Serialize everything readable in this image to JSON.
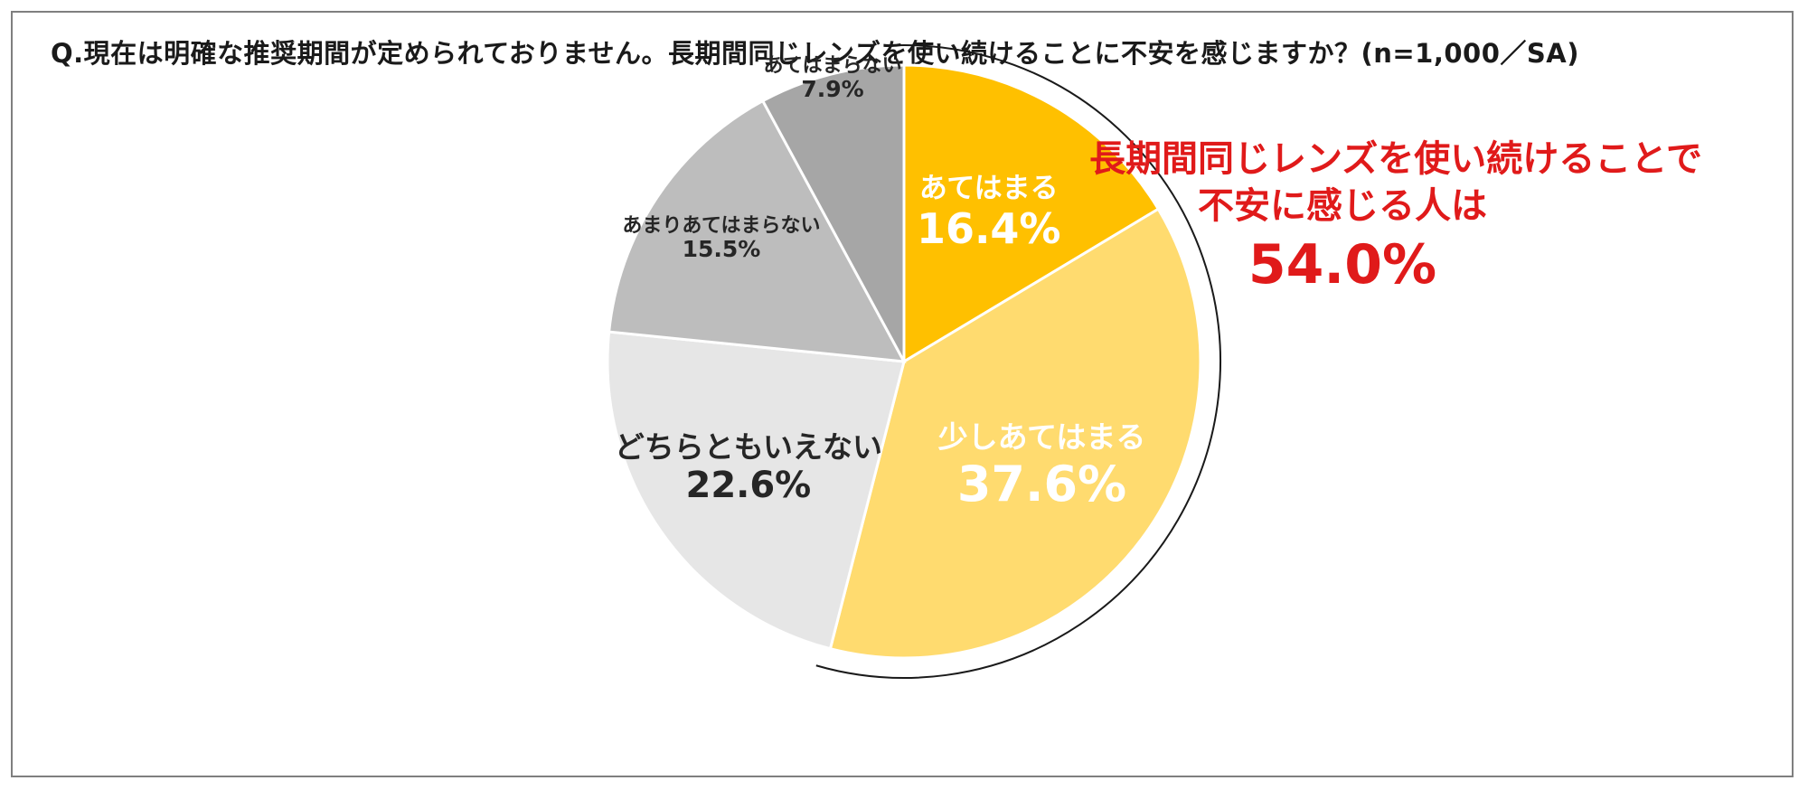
{
  "title": "Q.現在は明確な推奨期間が定められておりません。長期間同じレンズを使い続けることに不安を感じますか？(n=1,000／SA)",
  "callout": {
    "line1": "長期間同じレンズを使い続けることで",
    "line2": "不安に感じる人は",
    "value": "54.0%",
    "color": "#e01a1a"
  },
  "chart_data": {
    "type": "pie",
    "title": "Q.現在は明確な推奨期間が定められておりません。長期間同じレンズを使い続けることに不安を感じますか？(n=1,000／SA)",
    "start": "12 o'clock",
    "direction": "clockwise",
    "slices": [
      {
        "label": "あてはまる",
        "value": 16.4,
        "value_label": "16.4%",
        "color": "#FFC000",
        "text_color": "#ffffff"
      },
      {
        "label": "少しあてはまる",
        "value": 37.6,
        "value_label": "37.6%",
        "color": "#FFDB6F",
        "text_color": "#ffffff"
      },
      {
        "label": "どちらともいえない",
        "value": 22.6,
        "value_label": "22.6%",
        "color": "#E6E6E6",
        "text_color": "#262626"
      },
      {
        "label": "あまりあてはまらない",
        "value": 15.5,
        "value_label": "15.5%",
        "color": "#BDBDBD",
        "text_color": "#262626"
      },
      {
        "label": "あてはまらない",
        "value": 7.9,
        "value_label": "7.9%",
        "color": "#A6A6A6",
        "text_color": "#262626"
      }
    ],
    "highlight_bracket": {
      "covers": [
        "あてはまる",
        "少しあてはまる"
      ],
      "total": "54.0%"
    }
  }
}
